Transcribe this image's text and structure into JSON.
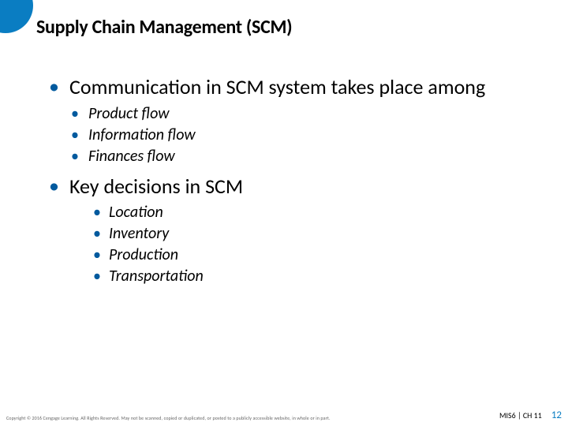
{
  "accent_color": "#0a7dc2",
  "bullet_color": "#005a9e",
  "background_color": "#ffffff",
  "title": "Supply Chain Management (SCM)",
  "bullets": {
    "l1_a": "Communication in SCM system takes place among",
    "l2_a1": "Product flow",
    "l2_a2": "Information flow",
    "l2_a3": "Finances flow",
    "l1_b": "Key decisions in SCM",
    "l3_b1": "Location",
    "l3_b2": "Inventory",
    "l3_b3": "Production",
    "l3_b4": "Transportation"
  },
  "footer": {
    "copyright": "Copyright © 2016 Cengage Learning. All Rights Reserved. May not be scanned, copied or duplicated, or posted to a publicly accessible website, in whole or in part.",
    "chapter": "MIS6 | CH 11",
    "page": "12"
  },
  "typography": {
    "title_fontsize": 24,
    "l1_fontsize": 26,
    "l2_fontsize": 20,
    "l3_fontsize": 20,
    "l2_italic": true,
    "l3_italic": true
  }
}
